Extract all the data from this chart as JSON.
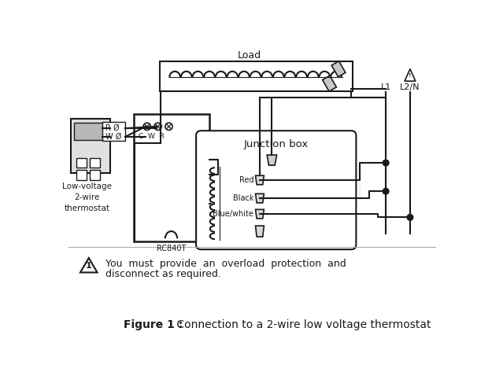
{
  "fig_width": 6.25,
  "fig_height": 4.87,
  "dpi": 100,
  "bg_color": "#ffffff",
  "lc": "#1a1a1a",
  "load_label": "Load",
  "thermostat_label": "Low-voltage\n2-wire\nthermostat",
  "rc840t_label": "RC840T",
  "junction_box_label": "Junction box",
  "red_label": "Red",
  "black_label": "Black",
  "bluewhite_label": "Blue/white",
  "l1_label": "L1",
  "l2n_label": "L2/N",
  "cwr_label": "C  W  R",
  "rw_r": "R Ø",
  "rw_w": "W Ø",
  "warn_line1": "You  must  provide  an  overload  protection  and",
  "warn_line2": "disconnect as required.",
  "fig_bold": "Figure 1 :",
  "fig_normal": " Connection to a 2-wire low voltage thermostat"
}
